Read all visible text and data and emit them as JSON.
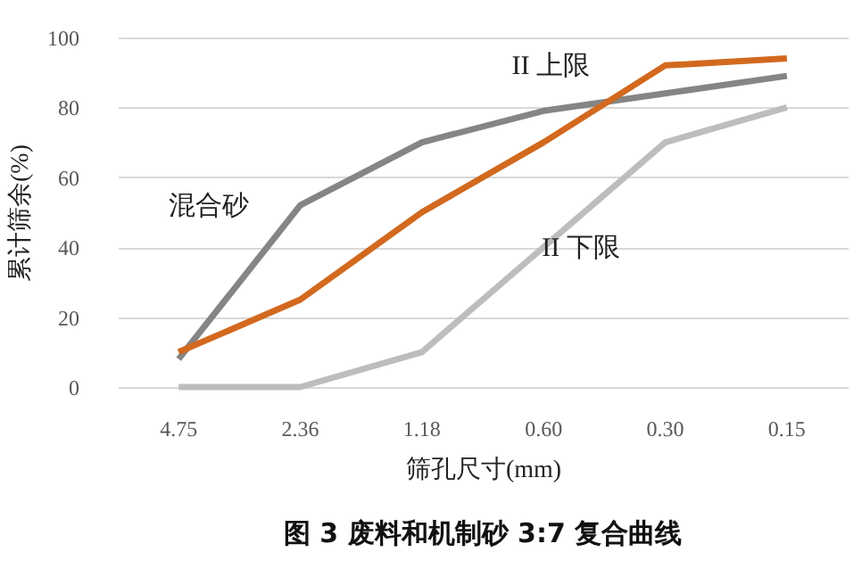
{
  "chart_data": {
    "type": "line",
    "title": "图 3  废料和机制砂 3:7 复合曲线",
    "xlabel": "筛孔尺寸(mm)",
    "ylabel": "累计筛余(%)",
    "categories": [
      "4.75",
      "2.36",
      "1.18",
      "0.60",
      "0.30",
      "0.15"
    ],
    "series": [
      {
        "name": "混合砂",
        "color": "#858585",
        "values": [
          8,
          52,
          70,
          79,
          84,
          89
        ]
      },
      {
        "name": "II 上限",
        "color": "#d2691e",
        "values": [
          10,
          25,
          50,
          70,
          92,
          94
        ]
      },
      {
        "name": "II 下限",
        "color": "#bdbdbd",
        "values": [
          0,
          0,
          10,
          40,
          70,
          80
        ]
      }
    ],
    "ylim": [
      0,
      100
    ],
    "yticks": [
      0,
      20,
      40,
      60,
      80,
      100
    ],
    "grid": "y"
  }
}
